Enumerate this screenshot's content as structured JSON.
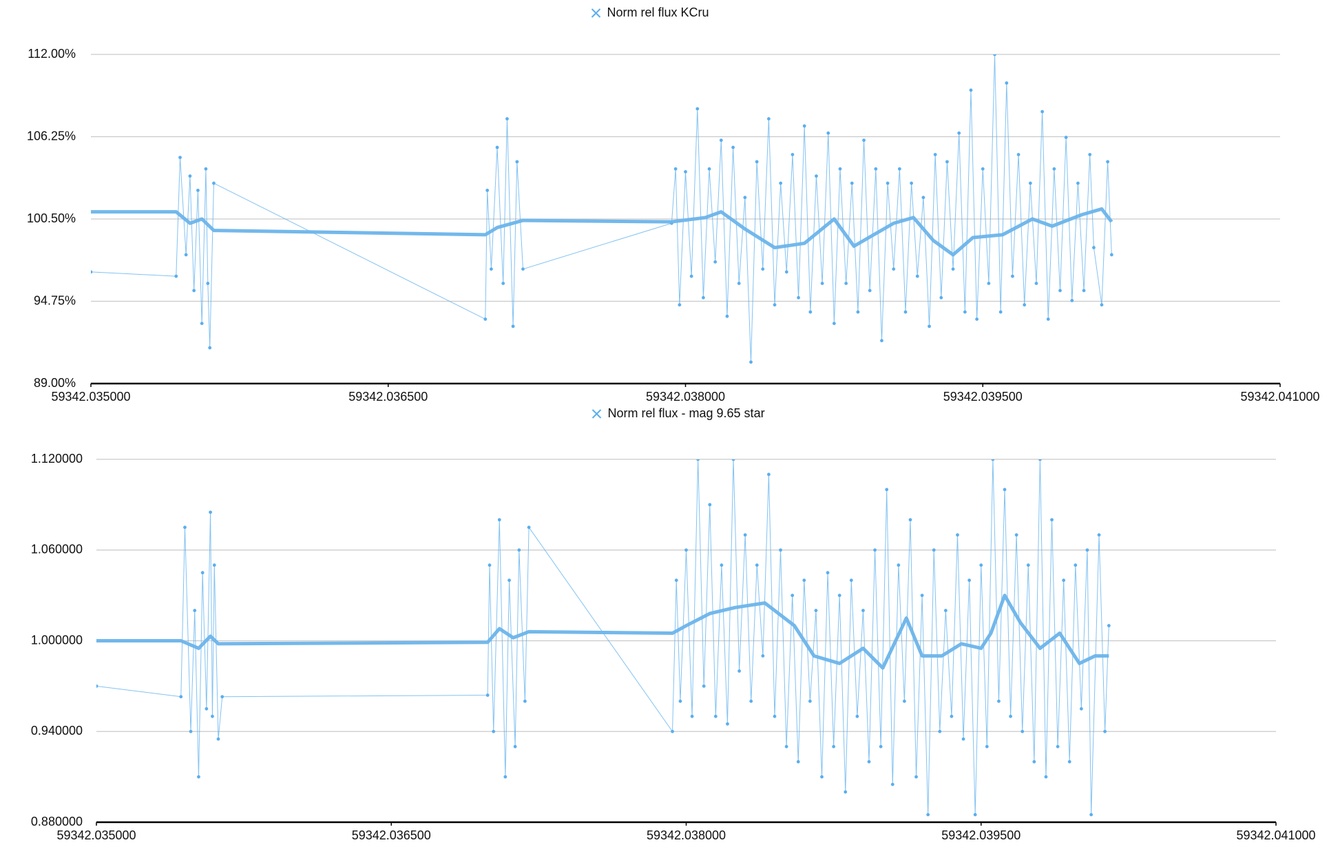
{
  "chart_data": [
    {
      "type": "line",
      "xlim": [
        59342.035,
        59342.041
      ],
      "xticks": [
        {
          "value": 59342.035,
          "label": "59342.035000"
        },
        {
          "value": 59342.0365,
          "label": "59342.036500"
        },
        {
          "value": 59342.038,
          "label": "59342.038000"
        },
        {
          "value": 59342.0395,
          "label": "59342.039500"
        },
        {
          "value": 59342.041,
          "label": "59342.041000"
        }
      ],
      "ylim": [
        89,
        112
      ],
      "yticks": [
        {
          "value": 112,
          "label": "112.00%"
        },
        {
          "value": 106.25,
          "label": "106.25%"
        },
        {
          "value": 100.5,
          "label": "100.50%"
        },
        {
          "value": 94.75,
          "label": "94.75%"
        },
        {
          "value": 89,
          "label": "89.00%"
        }
      ],
      "grid": true,
      "legend": "top",
      "series": [
        {
          "name": "Norm rel flux KCru",
          "color": "#5aaeee",
          "x": [
            59342.035,
            59342.03543,
            59342.03545,
            59342.03548,
            59342.0355,
            59342.03552,
            59342.03554,
            59342.03556,
            59342.03558,
            59342.03559,
            59342.0356,
            59342.03562,
            59342.03699,
            59342.037,
            59342.03702,
            59342.03705,
            59342.03708,
            59342.0371,
            59342.03713,
            59342.03715,
            59342.03718,
            59342.03793,
            59342.03795,
            59342.03797,
            59342.038,
            59342.03803,
            59342.03806,
            59342.03809,
            59342.03812,
            59342.03815,
            59342.03818,
            59342.03821,
            59342.03824,
            59342.03827,
            59342.0383,
            59342.03833,
            59342.03836,
            59342.03839,
            59342.03842,
            59342.03845,
            59342.03848,
            59342.03851,
            59342.03854,
            59342.03857,
            59342.0386,
            59342.03863,
            59342.03866,
            59342.03869,
            59342.03872,
            59342.03875,
            59342.03878,
            59342.03881,
            59342.03884,
            59342.03887,
            59342.0389,
            59342.03893,
            59342.03896,
            59342.03899,
            59342.03902,
            59342.03905,
            59342.03908,
            59342.03911,
            59342.03914,
            59342.03917,
            59342.0392,
            59342.03923,
            59342.03926,
            59342.03929,
            59342.03932,
            59342.03935,
            59342.03938,
            59342.03941,
            59342.03944,
            59342.03947,
            59342.0395,
            59342.03953,
            59342.03956,
            59342.03959,
            59342.03962,
            59342.03965,
            59342.03968,
            59342.03971,
            59342.03974,
            59342.03977,
            59342.0398,
            59342.03983,
            59342.03986,
            59342.03989,
            59342.03992,
            59342.03995,
            59342.03998,
            59342.04001,
            59342.04004,
            59342.04006,
            59342.0401,
            59342.04013,
            59342.04015
          ],
          "values": [
            96.8,
            96.5,
            104.8,
            98,
            103.5,
            95.5,
            102.5,
            93.2,
            104,
            96,
            91.5,
            103,
            93.5,
            102.5,
            97,
            105.5,
            96,
            107.5,
            93,
            104.5,
            97,
            100.2,
            104,
            94.5,
            103.8,
            96.5,
            108.2,
            95,
            104,
            97.5,
            106,
            93.7,
            105.5,
            96,
            102,
            90.5,
            104.5,
            97,
            107.5,
            94.5,
            103,
            96.8,
            105,
            95,
            107,
            94,
            103.5,
            96,
            106.5,
            93.2,
            104,
            96,
            103,
            94,
            106,
            95.5,
            104,
            92,
            103,
            97,
            104,
            94,
            103,
            96.5,
            102,
            93,
            105,
            95,
            104.5,
            97,
            106.5,
            94,
            109.5,
            93.5,
            104,
            96,
            112,
            94,
            110,
            96.5,
            105,
            94.5,
            103,
            96,
            108,
            93.5,
            104,
            95.5,
            106.2,
            94.8,
            103,
            95.5,
            105,
            98.5,
            94.5,
            104.5,
            98
          ]
        },
        {
          "color": "#6cb4ea",
          "x": [
            59342.035,
            59342.03543,
            59342.0355,
            59342.03556,
            59342.03562,
            59342.03699,
            59342.03705,
            59342.03718,
            59342.03793,
            59342.0381,
            59342.03818,
            59342.0383,
            59342.03845,
            59342.0386,
            59342.03875,
            59342.03885,
            59342.03905,
            59342.03915,
            59342.03925,
            59342.03935,
            59342.03945,
            59342.0396,
            59342.03975,
            59342.03985,
            59342.04,
            59342.0401,
            59342.04015
          ],
          "values": [
            101,
            101,
            100.2,
            100.5,
            99.7,
            99.4,
            99.9,
            100.4,
            100.3,
            100.6,
            101,
            99.8,
            98.5,
            98.8,
            100.5,
            98.6,
            100.2,
            100.6,
            99,
            98,
            99.2,
            99.4,
            100.5,
            100,
            100.8,
            101.2,
            100.3
          ]
        }
      ]
    },
    {
      "type": "line",
      "xlim": [
        59342.035,
        59342.041
      ],
      "xticks": [
        {
          "value": 59342.035,
          "label": "59342.035000"
        },
        {
          "value": 59342.0365,
          "label": "59342.036500"
        },
        {
          "value": 59342.038,
          "label": "59342.038000"
        },
        {
          "value": 59342.0395,
          "label": "59342.039500"
        },
        {
          "value": 59342.041,
          "label": "59342.041000"
        }
      ],
      "ylim": [
        0.88,
        1.12
      ],
      "yticks": [
        {
          "value": 1.12,
          "label": "1.120000"
        },
        {
          "value": 1.06,
          "label": "1.060000"
        },
        {
          "value": 1,
          "label": "1.000000"
        },
        {
          "value": 0.94,
          "label": "0.940000"
        },
        {
          "value": 0.88,
          "label": "0.880000"
        }
      ],
      "grid": true,
      "legend": "top",
      "series": [
        {
          "name": "Norm rel flux - mag 9.65 star",
          "color": "#5aaeee",
          "x": [
            59342.035,
            59342.03543,
            59342.03545,
            59342.03548,
            59342.0355,
            59342.03552,
            59342.03554,
            59342.03556,
            59342.03558,
            59342.03559,
            59342.0356,
            59342.03562,
            59342.03564,
            59342.03699,
            59342.037,
            59342.03702,
            59342.03705,
            59342.03708,
            59342.0371,
            59342.03713,
            59342.03715,
            59342.03718,
            59342.0372,
            59342.03793,
            59342.03795,
            59342.03797,
            59342.038,
            59342.03803,
            59342.03806,
            59342.03809,
            59342.03812,
            59342.03815,
            59342.03818,
            59342.03821,
            59342.03824,
            59342.03827,
            59342.0383,
            59342.03833,
            59342.03836,
            59342.03839,
            59342.03842,
            59342.03845,
            59342.03848,
            59342.03851,
            59342.03854,
            59342.03857,
            59342.0386,
            59342.03863,
            59342.03866,
            59342.03869,
            59342.03872,
            59342.03875,
            59342.03878,
            59342.03881,
            59342.03884,
            59342.03887,
            59342.0389,
            59342.03893,
            59342.03896,
            59342.03899,
            59342.03902,
            59342.03905,
            59342.03908,
            59342.03911,
            59342.03914,
            59342.03917,
            59342.0392,
            59342.03923,
            59342.03926,
            59342.03929,
            59342.03932,
            59342.03935,
            59342.03938,
            59342.03941,
            59342.03944,
            59342.03947,
            59342.0395,
            59342.03953,
            59342.03956,
            59342.03959,
            59342.03962,
            59342.03965,
            59342.03968,
            59342.03971,
            59342.03974,
            59342.03977,
            59342.0398,
            59342.03983,
            59342.03986,
            59342.03989,
            59342.03992,
            59342.03995,
            59342.03998,
            59342.04001,
            59342.04004,
            59342.04006,
            59342.0401,
            59342.04013,
            59342.04015
          ],
          "values": [
            0.97,
            0.963,
            1.075,
            0.94,
            1.02,
            0.91,
            1.045,
            0.955,
            1.085,
            0.95,
            1.05,
            0.935,
            0.963,
            0.964,
            1.05,
            0.94,
            1.08,
            0.91,
            1.04,
            0.93,
            1.06,
            0.96,
            1.075,
            0.94,
            1.04,
            0.96,
            1.06,
            0.95,
            1.12,
            0.97,
            1.09,
            0.95,
            1.05,
            0.945,
            1.12,
            0.98,
            1.07,
            0.96,
            1.05,
            0.99,
            1.11,
            0.95,
            1.06,
            0.93,
            1.03,
            0.92,
            1.04,
            0.96,
            1.02,
            0.91,
            1.045,
            0.93,
            1.03,
            0.9,
            1.04,
            0.95,
            1.02,
            0.92,
            1.06,
            0.93,
            1.1,
            0.905,
            1.05,
            0.96,
            1.08,
            0.91,
            1.03,
            0.885,
            1.06,
            0.94,
            1.02,
            0.95,
            1.07,
            0.935,
            1.04,
            0.885,
            1.05,
            0.93,
            1.12,
            0.96,
            1.1,
            0.95,
            1.07,
            0.94,
            1.05,
            0.92,
            1.12,
            0.91,
            1.08,
            0.93,
            1.04,
            0.92,
            1.05,
            0.955,
            1.06,
            0.885,
            1.07,
            0.94,
            1.01
          ]
        },
        {
          "color": "#6cb4ea",
          "x": [
            59342.035,
            59342.03543,
            59342.03552,
            59342.03558,
            59342.03562,
            59342.03699,
            59342.03705,
            59342.03712,
            59342.0372,
            59342.03793,
            59342.038,
            59342.03812,
            59342.03825,
            59342.0384,
            59342.03855,
            59342.03865,
            59342.03878,
            59342.0389,
            59342.039,
            59342.03912,
            59342.0392,
            59342.0393,
            59342.0394,
            59342.0395,
            59342.03955,
            59342.03962,
            59342.0397,
            59342.0398,
            59342.0399,
            59342.04,
            59342.04008,
            59342.04015
          ],
          "values": [
            1,
            1,
            0.995,
            1.003,
            0.998,
            0.999,
            1.008,
            1.002,
            1.006,
            1.005,
            1.01,
            1.018,
            1.022,
            1.025,
            1.01,
            0.99,
            0.985,
            0.995,
            0.982,
            1.015,
            0.99,
            0.99,
            0.998,
            0.995,
            1.005,
            1.03,
            1.012,
            0.995,
            1.005,
            0.985,
            0.99,
            0.99
          ]
        }
      ]
    }
  ]
}
